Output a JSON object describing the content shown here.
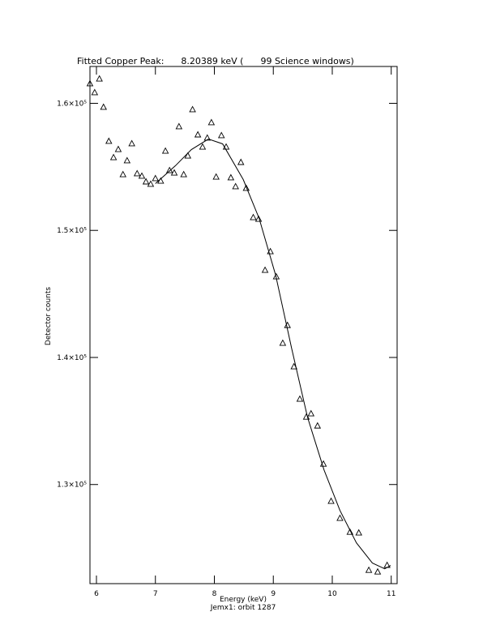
{
  "chart_data": {
    "type": "scatter",
    "title": "Fitted Copper Peak:      8.20389 keV (      99 Science windows)",
    "x_label": "Energy (keV)",
    "subtitle": "Jemx1: orbit 1287",
    "y_label": "Detector counts",
    "xlim": [
      5.89,
      11.1
    ],
    "ylim": [
      122200,
      162900
    ],
    "xticks": [
      6,
      7,
      8,
      9,
      10,
      11
    ],
    "yticks": [
      {
        "value": 130000,
        "label": "1.3×10⁵"
      },
      {
        "value": 140000,
        "label": "1.4×10⁵"
      },
      {
        "value": 150000,
        "label": "1.5×10⁵"
      },
      {
        "value": 160000,
        "label": "1.6×10⁵"
      }
    ],
    "series": [
      {
        "marker": "triangle",
        "color": "#000000",
        "x": [
          5.89,
          5.97,
          6.05,
          6.12,
          6.21,
          6.29,
          6.37,
          6.45,
          6.52,
          6.6,
          6.69,
          6.77,
          6.84,
          6.92,
          7.0,
          7.09,
          7.17,
          7.24,
          7.32,
          7.4,
          7.48,
          7.55,
          7.63,
          7.72,
          7.8,
          7.88,
          7.95,
          8.03,
          8.12,
          8.2,
          8.28,
          8.36,
          8.45,
          8.54,
          8.66,
          8.75,
          8.86,
          8.95,
          9.05,
          9.16,
          9.24,
          9.35,
          9.45,
          9.56,
          9.64,
          9.75,
          9.85,
          9.98,
          10.13,
          10.3,
          10.45,
          10.62,
          10.77,
          10.93
        ],
        "values": [
          161530,
          160830,
          161910,
          159680,
          157000,
          155720,
          156360,
          154380,
          155470,
          156810,
          154450,
          154260,
          153810,
          153620,
          154070,
          153870,
          156230,
          154700,
          154510,
          158150,
          154380,
          155850,
          159490,
          157510,
          156550,
          157260,
          158470,
          154190,
          157450,
          156550,
          154130,
          153430,
          155340,
          153300,
          151000,
          150870,
          146850,
          148320,
          146340,
          141110,
          142510,
          139260,
          136710,
          135300,
          135560,
          134600,
          131600,
          128670,
          127330,
          126240,
          126180,
          123240,
          123110,
          123630
        ]
      },
      {
        "marker": "none",
        "color": "#000000",
        "x": [
          7.0,
          7.34,
          7.61,
          7.9,
          8.14,
          8.49,
          8.76,
          9.04,
          9.31,
          9.58,
          9.86,
          10.13,
          10.41,
          10.68,
          10.89,
          10.99
        ],
        "values": [
          153680,
          155090,
          156360,
          157190,
          156810,
          154000,
          150940,
          146470,
          140730,
          135300,
          131150,
          127960,
          125410,
          123820,
          123370,
          123630
        ]
      }
    ]
  }
}
